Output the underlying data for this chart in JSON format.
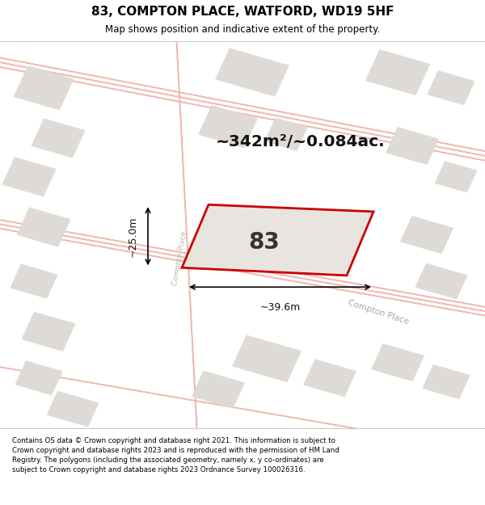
{
  "title_line1": "83, COMPTON PLACE, WATFORD, WD19 5HF",
  "title_line2": "Map shows position and indicative extent of the property.",
  "area_text": "~342m²/~0.084ac.",
  "label_number": "83",
  "dim_width": "~39.6m",
  "dim_height": "~25.0m",
  "footer_text": "Contains OS data © Crown copyright and database right 2021. This information is subject to Crown copyright and database rights 2023 and is reproduced with the permission of HM Land Registry. The polygons (including the associated geometry, namely x, y co-ordinates) are subject to Crown copyright and database rights 2023 Ordnance Survey 100026316.",
  "bg_color": "#f2efec",
  "street_color": "#ffffff",
  "block_color": "#dedbd7",
  "plot_edge_color": "#cc0000",
  "road_line_color": "#f0b8b0",
  "title_bg": "#ffffff",
  "footer_bg": "#ffffff",
  "figsize": [
    6.0,
    6.25
  ],
  "dpi": 100
}
